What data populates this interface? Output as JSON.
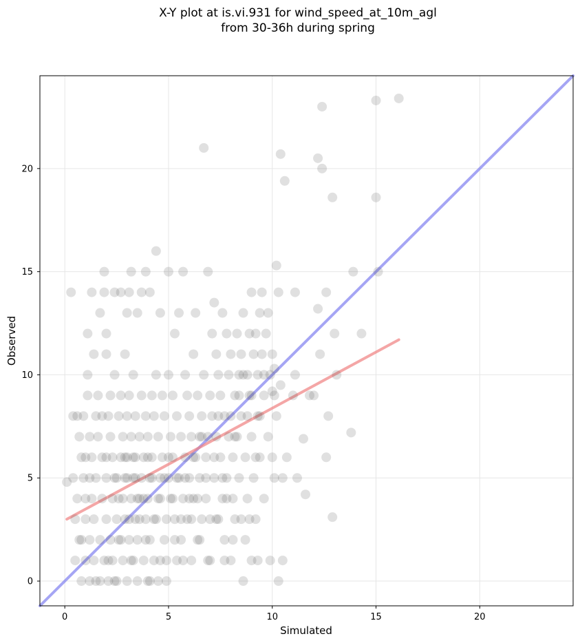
{
  "chart_data": {
    "type": "scatter",
    "title_lines": [
      "X-Y plot at is.vi.931 for wind_speed_at_10m_agl",
      "from 30-36h during spring"
    ],
    "xlabel": "Simulated",
    "ylabel": "Observed",
    "xlim": [
      -1.2,
      24.5
    ],
    "ylim": [
      -1.2,
      24.5
    ],
    "xticks": [
      0,
      5,
      10,
      15,
      20
    ],
    "yticks": [
      0,
      5,
      10,
      15,
      20
    ],
    "grid": true,
    "point_color": "#555555",
    "points": [
      [
        0.1,
        4.8
      ],
      [
        0.3,
        14
      ],
      [
        0.4,
        8
      ],
      [
        0.4,
        5
      ],
      [
        0.5,
        3
      ],
      [
        0.5,
        1
      ],
      [
        0.6,
        4
      ],
      [
        0.7,
        7
      ],
      [
        0.7,
        2
      ],
      [
        0.8,
        6
      ],
      [
        0.8,
        0
      ],
      [
        0.9,
        5
      ],
      [
        0.9,
        8
      ],
      [
        1.0,
        3
      ],
      [
        1.0,
        1
      ],
      [
        1.0,
        4
      ],
      [
        1.1,
        12
      ],
      [
        1.1,
        10
      ],
      [
        1.1,
        9
      ],
      [
        1.2,
        7
      ],
      [
        1.2,
        5
      ],
      [
        1.2,
        2
      ],
      [
        1.2,
        0
      ],
      [
        1.3,
        14
      ],
      [
        1.3,
        6
      ],
      [
        1.3,
        4
      ],
      [
        1.4,
        11
      ],
      [
        1.4,
        3
      ],
      [
        1.4,
        1
      ],
      [
        1.5,
        8
      ],
      [
        1.5,
        5
      ],
      [
        1.6,
        7
      ],
      [
        1.6,
        9
      ],
      [
        1.7,
        13
      ],
      [
        1.7,
        2
      ],
      [
        1.7,
        0
      ],
      [
        1.8,
        6
      ],
      [
        1.8,
        4
      ],
      [
        1.9,
        14
      ],
      [
        1.9,
        15
      ],
      [
        1.9,
        1
      ],
      [
        2.0,
        3
      ],
      [
        2.0,
        5
      ],
      [
        2.0,
        12
      ],
      [
        2.0,
        11
      ],
      [
        2.1,
        8
      ],
      [
        2.1,
        0
      ],
      [
        2.2,
        9
      ],
      [
        2.2,
        7
      ],
      [
        2.2,
        2
      ],
      [
        2.3,
        6
      ],
      [
        2.3,
        4
      ],
      [
        2.3,
        1
      ],
      [
        2.4,
        10
      ],
      [
        2.4,
        14
      ],
      [
        2.5,
        5
      ],
      [
        2.5,
        3
      ],
      [
        2.5,
        0
      ],
      [
        2.6,
        8
      ],
      [
        2.6,
        2
      ],
      [
        2.7,
        9
      ],
      [
        2.7,
        6
      ],
      [
        2.7,
        14
      ],
      [
        2.8,
        7
      ],
      [
        2.8,
        4
      ],
      [
        2.8,
        1
      ],
      [
        2.9,
        11
      ],
      [
        2.9,
        5
      ],
      [
        2.9,
        3
      ],
      [
        3.0,
        8
      ],
      [
        3.0,
        13
      ],
      [
        3.0,
        6
      ],
      [
        3.0,
        0
      ],
      [
        3.1,
        2
      ],
      [
        3.1,
        9
      ],
      [
        3.1,
        14
      ],
      [
        3.2,
        7
      ],
      [
        3.2,
        4
      ],
      [
        3.2,
        15
      ],
      [
        3.3,
        5
      ],
      [
        3.3,
        1
      ],
      [
        3.3,
        10
      ],
      [
        3.4,
        6
      ],
      [
        3.4,
        3
      ],
      [
        3.4,
        8
      ],
      [
        3.5,
        2
      ],
      [
        3.5,
        13
      ],
      [
        3.5,
        0
      ],
      [
        3.6,
        7
      ],
      [
        3.6,
        4
      ],
      [
        3.7,
        9
      ],
      [
        3.7,
        5
      ],
      [
        3.7,
        14
      ],
      [
        3.8,
        6
      ],
      [
        3.8,
        1
      ],
      [
        3.9,
        8
      ],
      [
        3.9,
        3
      ],
      [
        3.9,
        15
      ],
      [
        4.0,
        4
      ],
      [
        4.0,
        7
      ],
      [
        4.0,
        0
      ],
      [
        4.1,
        5
      ],
      [
        4.1,
        2
      ],
      [
        4.1,
        14
      ],
      [
        4.2,
        9
      ],
      [
        4.2,
        6
      ],
      [
        4.3,
        8
      ],
      [
        4.3,
        3
      ],
      [
        4.3,
        1
      ],
      [
        4.4,
        10
      ],
      [
        4.4,
        16
      ],
      [
        4.5,
        4
      ],
      [
        4.5,
        7
      ],
      [
        4.5,
        0
      ],
      [
        4.6,
        5
      ],
      [
        4.6,
        13
      ],
      [
        4.7,
        6
      ],
      [
        4.7,
        9
      ],
      [
        4.8,
        2
      ],
      [
        4.8,
        8
      ],
      [
        4.9,
        3
      ],
      [
        4.9,
        1
      ],
      [
        5.0,
        5
      ],
      [
        5.0,
        10
      ],
      [
        5.0,
        15
      ],
      [
        5.1,
        7
      ],
      [
        5.1,
        4
      ],
      [
        5.2,
        6
      ],
      [
        5.2,
        9
      ],
      [
        5.3,
        3
      ],
      [
        5.3,
        12
      ],
      [
        5.4,
        8
      ],
      [
        5.4,
        1
      ],
      [
        5.5,
        5
      ],
      [
        5.5,
        13
      ],
      [
        5.6,
        7
      ],
      [
        5.6,
        2
      ],
      [
        5.7,
        15
      ],
      [
        5.7,
        4
      ],
      [
        5.8,
        6
      ],
      [
        5.8,
        10
      ],
      [
        5.9,
        9
      ],
      [
        5.9,
        3
      ],
      [
        6.0,
        8
      ],
      [
        6.0,
        5
      ],
      [
        6.1,
        7
      ],
      [
        6.1,
        1
      ],
      [
        6.2,
        11
      ],
      [
        6.2,
        4
      ],
      [
        6.3,
        6
      ],
      [
        6.3,
        13
      ],
      [
        6.4,
        2
      ],
      [
        6.4,
        9
      ],
      [
        6.5,
        7
      ],
      [
        6.5,
        5
      ],
      [
        6.6,
        8
      ],
      [
        6.6,
        3
      ],
      [
        6.7,
        21
      ],
      [
        6.7,
        10
      ],
      [
        6.8,
        6
      ],
      [
        6.8,
        4
      ],
      [
        6.9,
        7
      ],
      [
        6.9,
        15
      ],
      [
        7.0,
        9
      ],
      [
        7.0,
        1
      ],
      [
        7.1,
        8
      ],
      [
        7.1,
        12
      ],
      [
        7.2,
        5
      ],
      [
        7.2,
        13.5
      ],
      [
        7.3,
        11
      ],
      [
        7.3,
        7
      ],
      [
        7.4,
        3
      ],
      [
        7.4,
        10
      ],
      [
        7.5,
        6
      ],
      [
        7.5,
        9
      ],
      [
        7.6,
        13
      ],
      [
        7.6,
        4
      ],
      [
        7.7,
        8
      ],
      [
        7.7,
        2
      ],
      [
        7.8,
        12
      ],
      [
        7.8,
        5
      ],
      [
        7.9,
        7
      ],
      [
        7.9,
        10
      ],
      [
        8.0,
        11
      ],
      [
        8.0,
        1
      ],
      [
        8.1,
        6
      ],
      [
        8.1,
        4
      ],
      [
        8.2,
        9
      ],
      [
        8.2,
        3
      ],
      [
        8.3,
        12
      ],
      [
        8.3,
        7
      ],
      [
        8.4,
        10
      ],
      [
        8.4,
        5
      ],
      [
        8.5,
        11
      ],
      [
        8.5,
        8
      ],
      [
        8.6,
        13
      ],
      [
        8.6,
        0
      ],
      [
        8.7,
        6
      ],
      [
        8.7,
        2
      ],
      [
        8.8,
        10
      ],
      [
        8.8,
        4
      ],
      [
        8.9,
        12
      ],
      [
        8.9,
        9
      ],
      [
        9.0,
        14
      ],
      [
        9.0,
        7
      ],
      [
        9.0,
        1
      ],
      [
        9.1,
        11
      ],
      [
        9.1,
        5
      ],
      [
        9.2,
        12
      ],
      [
        9.2,
        3
      ],
      [
        9.3,
        10
      ],
      [
        9.3,
        8
      ],
      [
        9.4,
        13
      ],
      [
        9.4,
        6
      ],
      [
        9.5,
        14
      ],
      [
        9.5,
        11
      ],
      [
        9.6,
        9
      ],
      [
        9.6,
        4
      ],
      [
        9.7,
        12
      ],
      [
        9.8,
        13
      ],
      [
        9.8,
        7
      ],
      [
        9.9,
        10
      ],
      [
        9.9,
        1
      ],
      [
        10.0,
        11
      ],
      [
        10.0,
        6
      ],
      [
        10.1,
        9
      ],
      [
        10.1,
        5
      ],
      [
        10.2,
        8
      ],
      [
        10.2,
        15.3
      ],
      [
        10.3,
        14
      ],
      [
        10.3,
        0
      ],
      [
        10.4,
        20.7
      ],
      [
        10.5,
        5
      ],
      [
        10.5,
        1
      ],
      [
        10.6,
        19.4
      ],
      [
        10.7,
        6
      ],
      [
        11.0,
        9
      ],
      [
        11.1,
        14
      ],
      [
        11.1,
        10
      ],
      [
        11.2,
        5
      ],
      [
        11.5,
        6.9
      ],
      [
        11.6,
        4.2
      ],
      [
        11.8,
        9
      ],
      [
        12.0,
        9
      ],
      [
        12.2,
        13.2
      ],
      [
        12.2,
        20.5
      ],
      [
        12.3,
        11
      ],
      [
        12.4,
        23
      ],
      [
        12.4,
        20
      ],
      [
        12.6,
        6
      ],
      [
        12.6,
        14
      ],
      [
        12.7,
        8
      ],
      [
        12.9,
        3.1
      ],
      [
        12.9,
        18.6
      ],
      [
        13.0,
        12
      ],
      [
        13.1,
        10
      ],
      [
        13.8,
        7.2
      ],
      [
        13.9,
        15
      ],
      [
        14.3,
        12
      ],
      [
        15.0,
        18.6
      ],
      [
        15.0,
        23.3
      ],
      [
        15.1,
        15
      ],
      [
        16.1,
        23.4
      ],
      [
        0.6,
        8
      ],
      [
        0.8,
        2
      ],
      [
        1.0,
        6
      ],
      [
        1.5,
        0
      ],
      [
        1.8,
        8
      ],
      [
        2.0,
        6
      ],
      [
        2.4,
        5
      ],
      [
        2.6,
        4
      ],
      [
        2.9,
        6
      ],
      [
        3.0,
        5
      ],
      [
        3.1,
        3
      ],
      [
        3.3,
        6
      ],
      [
        3.4,
        5
      ],
      [
        3.6,
        3
      ],
      [
        3.8,
        4
      ],
      [
        4.0,
        6
      ],
      [
        4.2,
        5
      ],
      [
        4.4,
        3
      ],
      [
        4.6,
        4
      ],
      [
        4.8,
        5
      ],
      [
        5.0,
        6
      ],
      [
        5.2,
        4
      ],
      [
        5.4,
        5
      ],
      [
        5.6,
        3
      ],
      [
        5.8,
        5
      ],
      [
        6.0,
        4
      ],
      [
        6.2,
        6
      ],
      [
        6.4,
        4
      ],
      [
        6.6,
        7
      ],
      [
        6.8,
        5
      ],
      [
        7.0,
        3
      ],
      [
        7.2,
        6
      ],
      [
        7.4,
        8
      ],
      [
        7.6,
        5
      ],
      [
        7.8,
        4
      ],
      [
        8.0,
        8
      ],
      [
        8.2,
        7
      ],
      [
        8.4,
        9
      ],
      [
        8.6,
        10
      ],
      [
        8.8,
        8
      ],
      [
        9.0,
        9
      ],
      [
        9.2,
        6
      ],
      [
        9.4,
        8
      ],
      [
        9.6,
        10
      ],
      [
        10.0,
        9.2
      ],
      [
        10.1,
        10.3
      ],
      [
        10.4,
        9.5
      ],
      [
        2.1,
        1
      ],
      [
        2.4,
        0
      ],
      [
        2.7,
        2
      ],
      [
        3.2,
        1
      ],
      [
        3.5,
        4
      ],
      [
        3.9,
        2
      ],
      [
        4.1,
        0
      ],
      [
        4.6,
        1
      ],
      [
        4.9,
        0
      ],
      [
        5.3,
        2
      ],
      [
        5.7,
        1
      ],
      [
        6.1,
        3
      ],
      [
        6.5,
        2
      ],
      [
        6.9,
        1
      ],
      [
        7.3,
        3
      ],
      [
        7.7,
        1
      ],
      [
        8.1,
        2
      ],
      [
        8.5,
        3
      ],
      [
        8.9,
        3
      ],
      [
        9.3,
        1
      ]
    ],
    "lines": [
      {
        "color": "#7f7ff0",
        "x": [
          -1.2,
          24.5
        ],
        "y": [
          -1.2,
          24.5
        ]
      },
      {
        "color": "#f08080",
        "x": [
          0.1,
          16.1
        ],
        "y": [
          3.0,
          11.7
        ]
      }
    ]
  }
}
